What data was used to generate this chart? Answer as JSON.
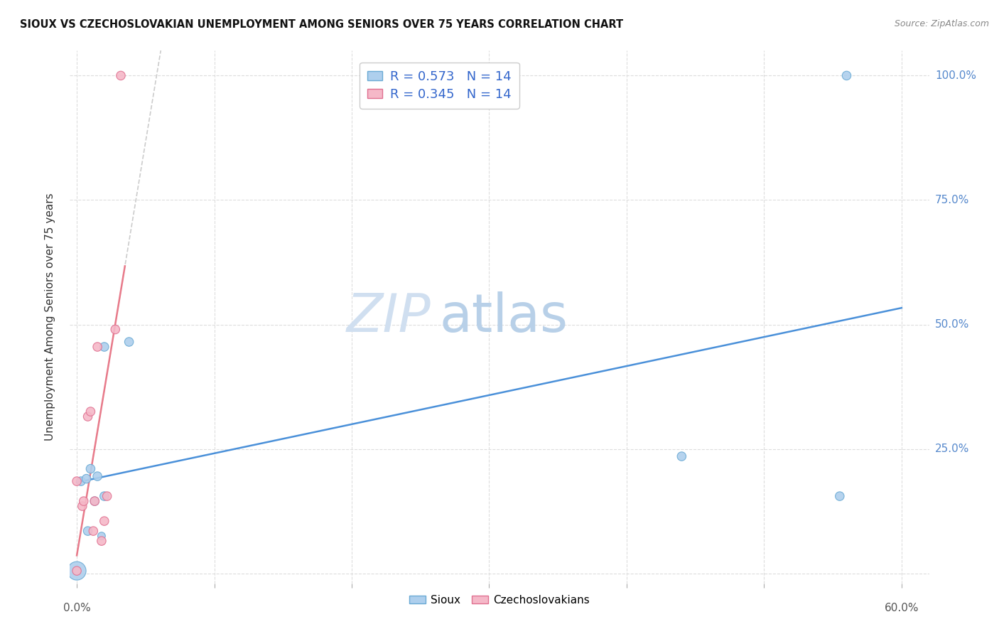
{
  "title": "SIOUX VS CZECHOSLOVAKIAN UNEMPLOYMENT AMONG SENIORS OVER 75 YEARS CORRELATION CHART",
  "source": "Source: ZipAtlas.com",
  "ylabel": "Unemployment Among Seniors over 75 years",
  "xlim": [
    -0.005,
    0.62
  ],
  "ylim": [
    -0.02,
    1.05
  ],
  "sioux_x": [
    0.0,
    0.003,
    0.007,
    0.008,
    0.01,
    0.013,
    0.015,
    0.018,
    0.02,
    0.02,
    0.038,
    0.44,
    0.555,
    0.56
  ],
  "sioux_y": [
    0.005,
    0.185,
    0.19,
    0.085,
    0.21,
    0.145,
    0.195,
    0.075,
    0.155,
    0.455,
    0.465,
    0.235,
    0.155,
    1.0
  ],
  "sioux_sizes": [
    350,
    80,
    80,
    80,
    80,
    80,
    80,
    60,
    80,
    80,
    80,
    80,
    80,
    80
  ],
  "czech_x": [
    0.0,
    0.0,
    0.004,
    0.005,
    0.008,
    0.01,
    0.012,
    0.013,
    0.015,
    0.018,
    0.02,
    0.022,
    0.028,
    0.032
  ],
  "czech_y": [
    0.005,
    0.185,
    0.135,
    0.145,
    0.315,
    0.325,
    0.085,
    0.145,
    0.455,
    0.065,
    0.105,
    0.155,
    0.49,
    1.0
  ],
  "czech_sizes": [
    80,
    80,
    80,
    80,
    80,
    80,
    80,
    80,
    80,
    80,
    80,
    80,
    80,
    80
  ],
  "sioux_color": "#aecfed",
  "sioux_edge_color": "#6aaad4",
  "czech_color": "#f5b8c8",
  "czech_edge_color": "#e07090",
  "sioux_R": 0.573,
  "czech_R": 0.345,
  "N": 14,
  "blue_line_color": "#4a90d9",
  "pink_line_color": "#e87a8a",
  "gray_line_color": "#cccccc",
  "watermark_zip_color": "#d0dff0",
  "watermark_atlas_color": "#b8d0e8",
  "background_color": "#ffffff",
  "grid_color": "#dddddd",
  "right_axis_label_color": "#5588cc",
  "ytick_right_values": [
    0.0,
    0.25,
    0.5,
    0.75,
    1.0
  ],
  "ytick_right_labels": [
    "",
    "25.0%",
    "50.0%",
    "75.0%",
    "100.0%"
  ]
}
